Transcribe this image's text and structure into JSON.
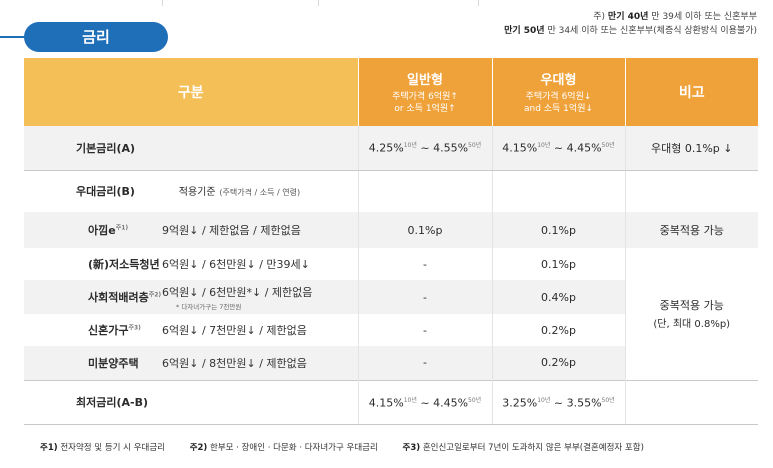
{
  "section": {
    "title": "금리"
  },
  "top_notes": {
    "line1_bold": "만기 40년",
    "line1_prefix": "주)",
    "line1_text": "만 39세 이하 또는 신혼부부",
    "line2_bold": "만기 50년",
    "line2_text": "만 34세 이하 또는 신혼부부(체증식 상환방식 이용불가)"
  },
  "header": {
    "gubun": "구분",
    "general_title": "일반형",
    "general_sub1": "주택가격 6억원↑",
    "general_sub2": "or 소득 1억원↑",
    "pref_title": "우대형",
    "pref_sub1": "주택가격 6억원↓",
    "pref_sub2": "and 소득 1억원↓",
    "note": "비고"
  },
  "rows": {
    "base": {
      "label": "기본금리(A)",
      "general": "4.25%",
      "general_s1": "10년",
      "general_mid": " ~ 4.55%",
      "general_s2": "50년",
      "pref": "4.15%",
      "pref_s1": "10년",
      "pref_mid": " ~ 4.45%",
      "pref_s2": "50년",
      "note": "우대형 0.1%p ↓"
    },
    "pref_rate": {
      "label": "우대금리(B)",
      "criteria_label": "적용기준",
      "criteria_sub": "(주택가격 / 소득 / 연령)"
    },
    "aggime": {
      "label": "아낌e",
      "sup": "주1)",
      "criteria": "9억원↓ / 제한없음 / 제한없음",
      "general": "0.1%p",
      "pref": "0.1%p",
      "note": "중복적용 가능"
    },
    "youth": {
      "label": "(新)저소득청년",
      "criteria": "6억원↓ / 6천만원↓ / 만39세↓",
      "general": "-",
      "pref": "0.1%p"
    },
    "social": {
      "label": "사회적배려층",
      "sup": "주2)",
      "criteria": "6억원↓ / 6천만원*↓ / 제한없음",
      "criteria_note": "* 다자녀가구는 7천만원",
      "general": "-",
      "pref": "0.4%p"
    },
    "newlywed": {
      "label": "신혼가구",
      "sup": "주3)",
      "criteria": "6억원↓ / 7천만원↓ / 제한없음",
      "general": "-",
      "pref": "0.2%p"
    },
    "unsold": {
      "label": "미분양주택",
      "criteria": "6억원↓ / 8천만원↓ / 제한없음",
      "general": "-",
      "pref": "0.2%p"
    },
    "group_note1": "중복적용 가능",
    "group_note2": "(단, 최대 0.8%p)",
    "lowest": {
      "label": "최저금리(A-B)",
      "general": "4.15%",
      "general_s1": "10년",
      "general_mid": " ~ 4.45%",
      "general_s2": "50년",
      "pref": "3.25%",
      "pref_s1": "10년",
      "pref_mid": " ~ 3.55%",
      "pref_s2": "50년"
    }
  },
  "footnotes": {
    "n1_label": "주1)",
    "n1_text": "전자약정 및 등기 시 우대금리",
    "n2_label": "주2)",
    "n2_text": "한부모 · 장애인 · 다문화 · 다자녀가구 우대금리",
    "n3_label": "주3)",
    "n3_text": "혼인신고일로부터 7년이 도과하지 않은 부부(결혼예정자 포함)"
  },
  "colors": {
    "accent_blue": "#1f6fb8",
    "header_light_orange": "#f5bf57",
    "header_orange": "#f0a23a",
    "row_grey": "#f2f2f2"
  }
}
